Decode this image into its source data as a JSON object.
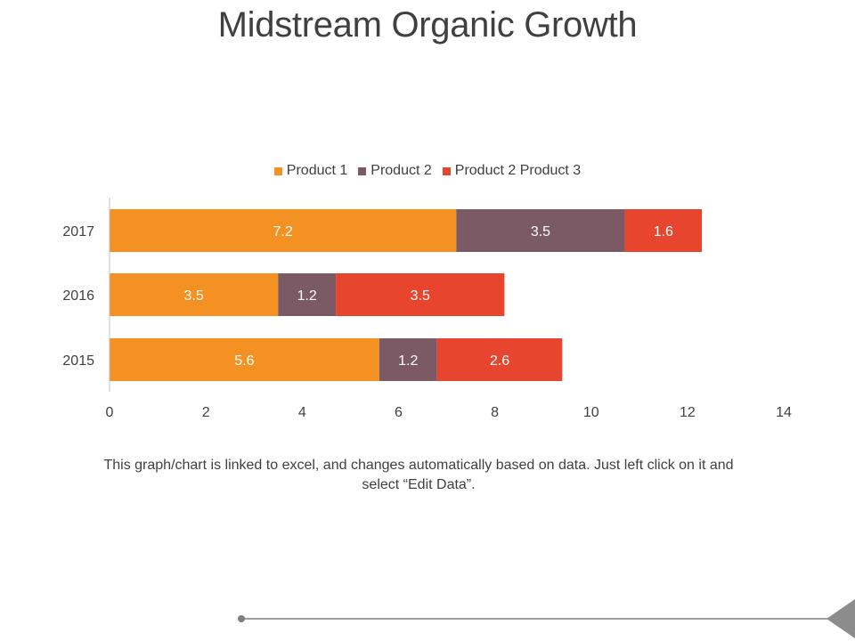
{
  "page": {
    "title": "Midstream Organic Growth",
    "caption": "This graph/chart is linked to excel, and changes automatically based on data. Just left click on it and select “Edit Data”."
  },
  "chart_data": {
    "type": "bar",
    "orientation": "horizontal",
    "stacked": true,
    "title": "",
    "xlabel": "",
    "ylabel": "",
    "categories": [
      "2015",
      "2016",
      "2017"
    ],
    "series": [
      {
        "name": "Product 1",
        "color": "#F39223",
        "values": [
          5.6,
          3.5,
          7.2
        ]
      },
      {
        "name": "Product 2",
        "color": "#7B5A65",
        "values": [
          1.2,
          1.2,
          3.5
        ]
      },
      {
        "name": "Product 2 Product 3",
        "color": "#E8452E",
        "values": [
          2.6,
          3.5,
          1.6
        ]
      }
    ],
    "data_labels": [
      [
        "5.6",
        "3.5",
        "7.2"
      ],
      [
        "1.2",
        "1.2",
        "3.5"
      ],
      [
        "2.6",
        "3.5",
        "1.6"
      ]
    ],
    "xlim": [
      0,
      14
    ],
    "xticks": [
      "0",
      "2",
      "4",
      "6",
      "8",
      "10",
      "12",
      "14"
    ],
    "grid": false,
    "legend_position": "top"
  },
  "decor": {
    "line_color": "#7F7F7F",
    "arrow_color": "#8C8C8C"
  }
}
